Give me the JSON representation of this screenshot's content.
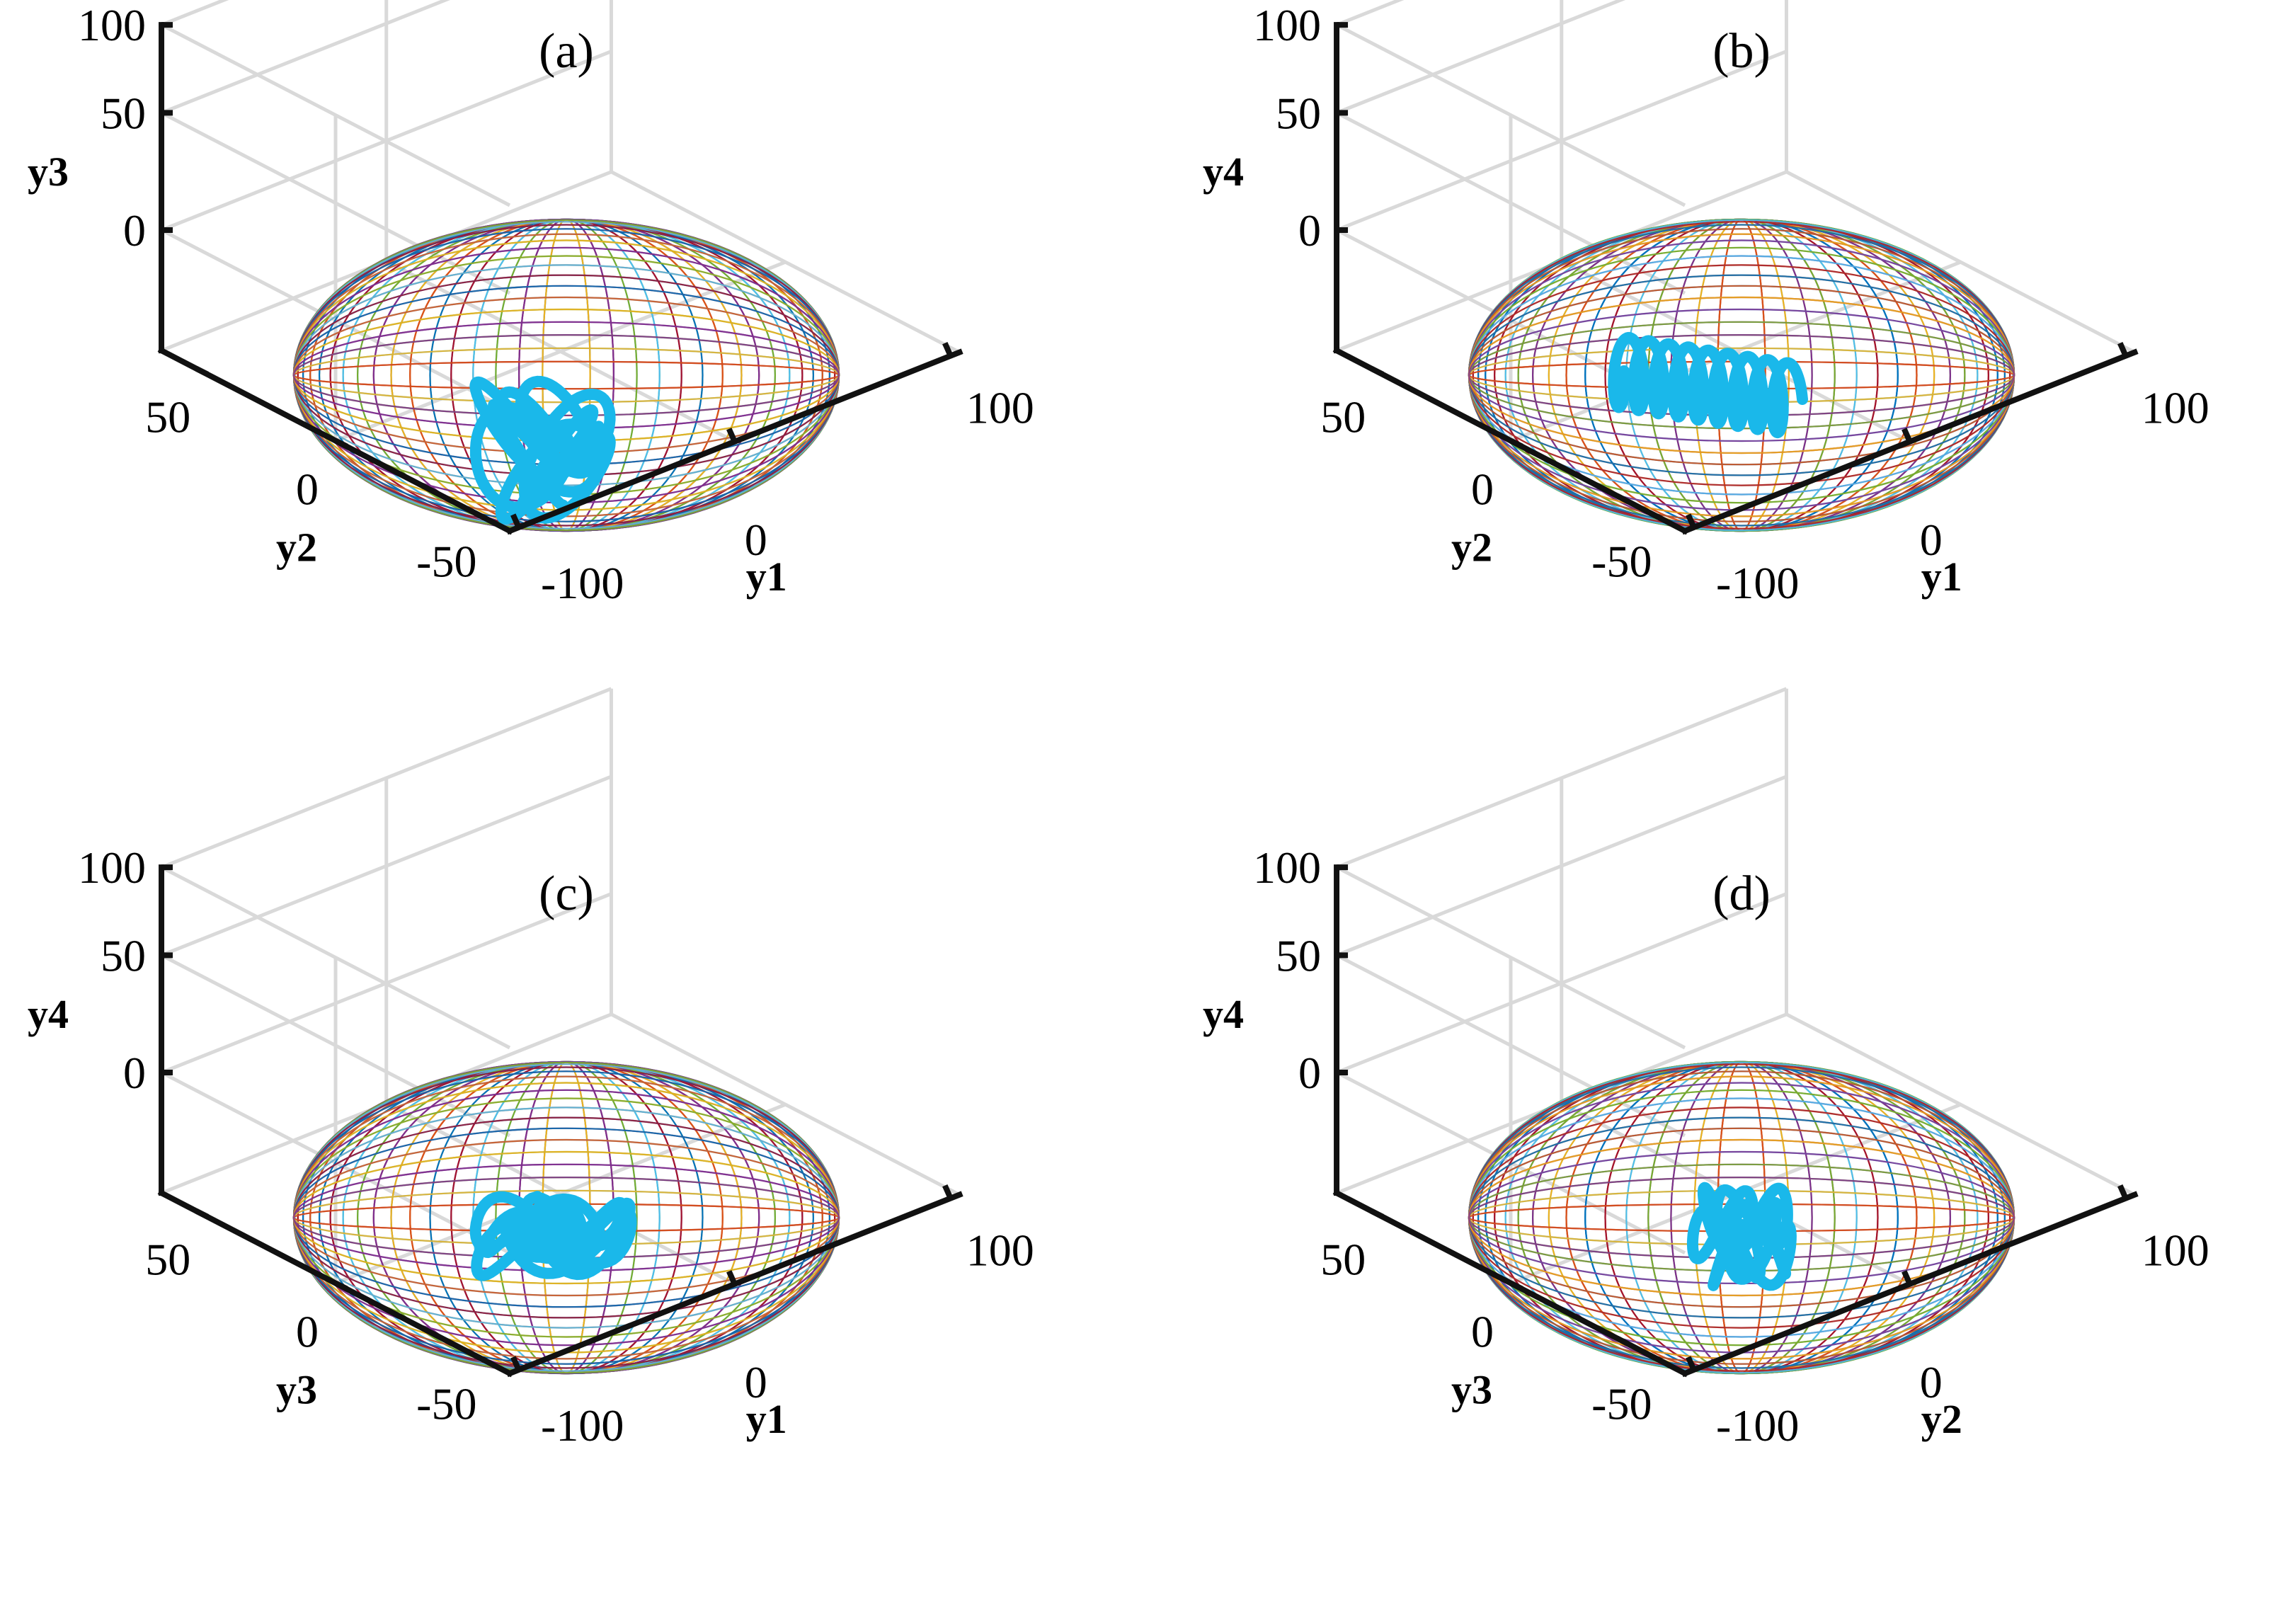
{
  "colors": {
    "wireframe": [
      "#0072bd",
      "#d95319",
      "#edb120",
      "#7e2f8e",
      "#77ac30",
      "#4dbeee",
      "#a2142f"
    ],
    "trajectory": "#1ab8ea",
    "grid": "#d9d9d9",
    "axis": "#111111"
  },
  "chart_data": [
    {
      "type": "3d-line",
      "panel": "a",
      "title": "(a)",
      "xlabel": "y1",
      "ylabel": "y2",
      "zlabel": "y3",
      "xticks": [
        "-100",
        "0",
        "100"
      ],
      "yticks": [
        "50",
        "0",
        "-50"
      ],
      "zticks": [
        "100",
        "50",
        "0"
      ],
      "xlim": [
        -100,
        100
      ],
      "ylim": [
        -50,
        50
      ],
      "zlim": [
        -50,
        100
      ],
      "surface": {
        "shape": "ellipsoid-wireframe",
        "center": [
          0,
          0,
          0
        ],
        "radii": [
          100,
          55,
          100
        ],
        "meridians": 36,
        "rotation_deg": -20
      },
      "trajectory": {
        "shape": "tangled-loop",
        "center": [
          -10,
          0,
          -5
        ],
        "extent": [
          35,
          20,
          35
        ],
        "turns": 7,
        "seed": 1
      }
    },
    {
      "type": "3d-line",
      "panel": "b",
      "title": "(b)",
      "xlabel": "y1",
      "ylabel": "y2",
      "zlabel": "y4",
      "xticks": [
        "-100",
        "0",
        "100"
      ],
      "yticks": [
        "50",
        "0",
        "-50"
      ],
      "zticks": [
        "100",
        "50",
        "0"
      ],
      "xlim": [
        -100,
        100
      ],
      "ylim": [
        -50,
        50
      ],
      "zlim": [
        -50,
        100
      ],
      "surface": {
        "shape": "ellipsoid-wireframe",
        "center": [
          0,
          0,
          0
        ],
        "radii": [
          100,
          55,
          100
        ],
        "meridians": 36,
        "rotation_deg": 20
      },
      "trajectory": {
        "shape": "zigzag-band",
        "center": [
          -15,
          0,
          30
        ],
        "extent": [
          45,
          10,
          20
        ],
        "turns": 9,
        "seed": 2
      }
    },
    {
      "type": "3d-line",
      "panel": "c",
      "title": "(c)",
      "xlabel": "y1",
      "ylabel": "y3",
      "zlabel": "y4",
      "xticks": [
        "-100",
        "0",
        "100"
      ],
      "yticks": [
        "50",
        "0",
        "-50"
      ],
      "zticks": [
        "100",
        "50",
        "0"
      ],
      "xlim": [
        -100,
        100
      ],
      "ylim": [
        -50,
        50
      ],
      "zlim": [
        -50,
        100
      ],
      "surface": {
        "shape": "ellipsoid-wireframe",
        "center": [
          0,
          0,
          0
        ],
        "radii": [
          100,
          55,
          100
        ],
        "meridians": 36,
        "rotation_deg": -20
      },
      "trajectory": {
        "shape": "tangled-loop",
        "center": [
          -5,
          0,
          20
        ],
        "extent": [
          40,
          15,
          20
        ],
        "turns": 8,
        "seed": 3
      }
    },
    {
      "type": "3d-line",
      "panel": "d",
      "title": "(d)",
      "xlabel": "y2",
      "ylabel": "y3",
      "zlabel": "y4",
      "xticks": [
        "-100",
        "0",
        "100"
      ],
      "yticks": [
        "50",
        "0",
        "-50"
      ],
      "zticks": [
        "100",
        "50",
        "0"
      ],
      "xlim": [
        -100,
        100
      ],
      "ylim": [
        -50,
        50
      ],
      "zlim": [
        -50,
        100
      ],
      "surface": {
        "shape": "ellipsoid-wireframe",
        "center": [
          0,
          0,
          0
        ],
        "radii": [
          100,
          55,
          100
        ],
        "meridians": 36,
        "rotation_deg": 20
      },
      "trajectory": {
        "shape": "tangled-loop",
        "center": [
          0,
          0,
          20
        ],
        "extent": [
          25,
          12,
          25
        ],
        "turns": 6,
        "seed": 4
      }
    }
  ]
}
